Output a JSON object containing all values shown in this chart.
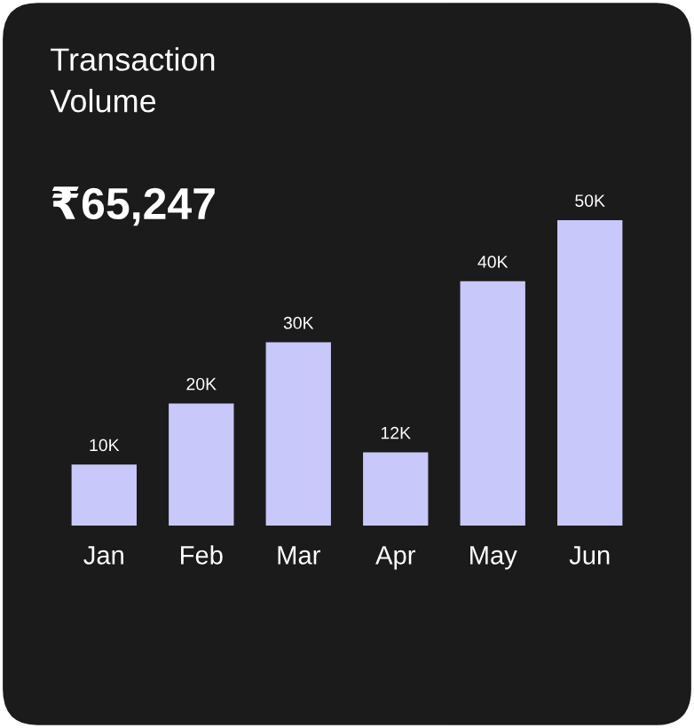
{
  "chart_data": {
    "type": "bar",
    "title": "Transaction\nVolume",
    "subtitle": "₹65,247",
    "categories": [
      "Jan",
      "Feb",
      "Mar",
      "Apr",
      "May",
      "Jun"
    ],
    "values": [
      10,
      20,
      30,
      12,
      40,
      50
    ],
    "value_labels": [
      "10K",
      "20K",
      "30K",
      "12K",
      "40K",
      "50K"
    ],
    "color": "#c9c8fb",
    "grid": false
  }
}
